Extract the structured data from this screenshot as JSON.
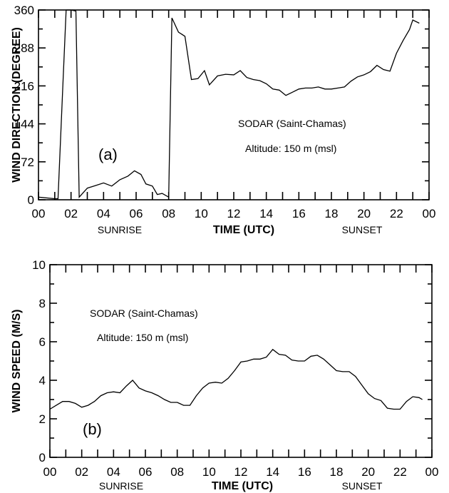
{
  "chart_data": [
    {
      "type": "line",
      "panel_label": "(a)",
      "xlabel": "TIME (UTC)",
      "ylabel": "WIND DIRECTION (DEGREE)",
      "xlim": [
        0,
        24
      ],
      "ylim": [
        0,
        360
      ],
      "x_ticks": [
        "00",
        "02",
        "04",
        "06",
        "08",
        "10",
        "12",
        "14",
        "16",
        "18",
        "20",
        "22",
        "00"
      ],
      "y_ticks": [
        "0",
        "72",
        "144",
        "216",
        "288",
        "360"
      ],
      "annotations": [
        "SODAR (Saint-Chamas)",
        "Altitude: 150 m (msl)"
      ],
      "bottom_labels": [
        "SUNRISE",
        "SUNSET"
      ],
      "grid": false,
      "x": [
        0,
        1,
        1.2,
        1.5,
        1.7,
        2,
        2.3,
        2.5,
        3,
        3.5,
        4,
        4.5,
        5,
        5.5,
        5.9,
        6.3,
        6.6,
        7,
        7.3,
        7.6,
        8,
        8.2,
        8.6,
        9,
        9.4,
        9.8,
        10.2,
        10.5,
        11,
        11.5,
        12,
        12.4,
        12.8,
        13.2,
        13.6,
        14,
        14.4,
        14.8,
        15.2,
        15.6,
        16,
        16.4,
        16.8,
        17.2,
        17.6,
        18,
        18.4,
        18.8,
        19.2,
        19.6,
        20,
        20.4,
        20.8,
        21.2,
        21.6,
        22,
        22.4,
        22.8,
        23,
        23.4
      ],
      "y": [
        5,
        2,
        2,
        220,
        360,
        360,
        358,
        5,
        22,
        27,
        32,
        26,
        38,
        45,
        55,
        48,
        30,
        26,
        10,
        12,
        5,
        345,
        318,
        310,
        228,
        230,
        245,
        218,
        235,
        238,
        237,
        245,
        232,
        228,
        226,
        220,
        210,
        208,
        198,
        204,
        210,
        212,
        212,
        214,
        210,
        210,
        212,
        214,
        225,
        233,
        237,
        243,
        255,
        247,
        244,
        278,
        302,
        323,
        341,
        335
      ]
    },
    {
      "type": "line",
      "panel_label": "(b)",
      "xlabel": "TIME (UTC)",
      "ylabel": "WIND SPEED (M/S)",
      "xlim": [
        0,
        24
      ],
      "ylim": [
        0,
        10
      ],
      "x_ticks": [
        "00",
        "02",
        "04",
        "06",
        "08",
        "10",
        "12",
        "14",
        "16",
        "18",
        "20",
        "22",
        "00"
      ],
      "y_ticks": [
        "0",
        "2",
        "4",
        "6",
        "8",
        "10"
      ],
      "annotations": [
        "SODAR (Saint-Chamas)",
        "Altitude: 150 m (msl)"
      ],
      "bottom_labels": [
        "SUNRISE",
        "SUNSET"
      ],
      "grid": false,
      "x": [
        0,
        0.4,
        0.8,
        1.2,
        1.6,
        2,
        2.4,
        2.8,
        3.2,
        3.6,
        4,
        4.4,
        4.8,
        5.2,
        5.6,
        6,
        6.4,
        6.8,
        7.2,
        7.6,
        8,
        8.4,
        8.8,
        9.2,
        9.6,
        10,
        10.4,
        10.8,
        11.2,
        11.6,
        12,
        12.4,
        12.8,
        13.2,
        13.6,
        14,
        14.4,
        14.8,
        15.2,
        15.6,
        16,
        16.4,
        16.8,
        17.2,
        17.6,
        18,
        18.4,
        18.8,
        19.2,
        19.6,
        20,
        20.4,
        20.8,
        21.2,
        21.6,
        22,
        22.4,
        22.8,
        23.2,
        23.4
      ],
      "y": [
        2.5,
        2.7,
        2.9,
        2.9,
        2.8,
        2.6,
        2.7,
        2.9,
        3.2,
        3.35,
        3.4,
        3.35,
        3.7,
        4.0,
        3.6,
        3.45,
        3.35,
        3.2,
        3.0,
        2.85,
        2.85,
        2.7,
        2.7,
        3.2,
        3.6,
        3.85,
        3.9,
        3.85,
        4.1,
        4.5,
        4.95,
        5.0,
        5.1,
        5.1,
        5.2,
        5.6,
        5.35,
        5.3,
        5.05,
        5.0,
        5.0,
        5.25,
        5.3,
        5.1,
        4.8,
        4.5,
        4.45,
        4.45,
        4.2,
        3.75,
        3.3,
        3.05,
        2.95,
        2.55,
        2.5,
        2.5,
        2.9,
        3.15,
        3.1,
        3.0
      ]
    }
  ]
}
